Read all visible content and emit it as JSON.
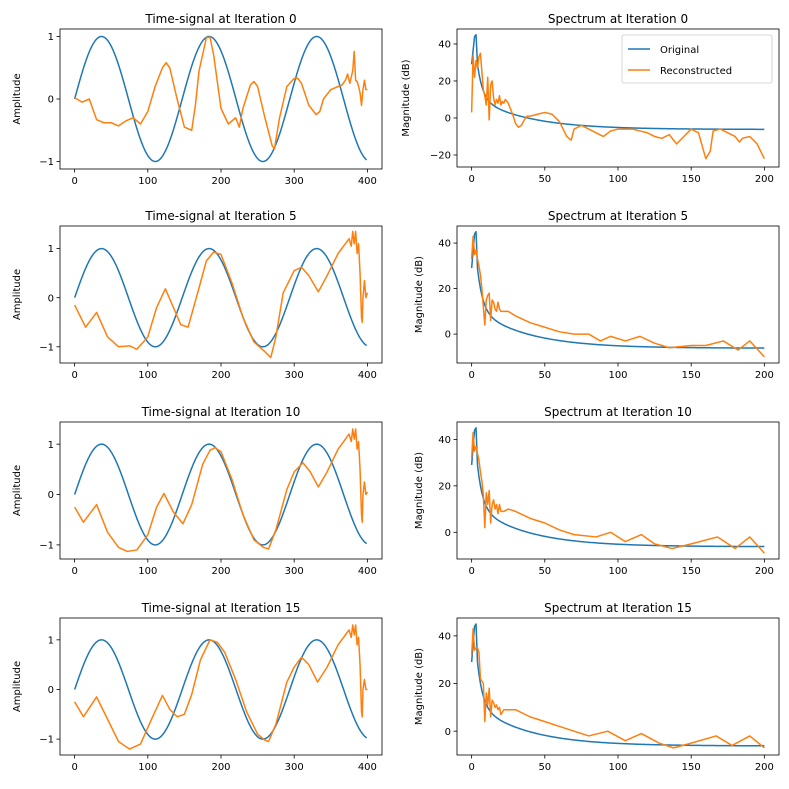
{
  "colors": {
    "original": "#1f77b4",
    "reconstructed": "#ff7f0e"
  },
  "chart_data": [
    {
      "type": "line",
      "panel": "time-0",
      "title": "Time-signal at Iteration 0",
      "xlabel": "",
      "ylabel": "Amplitude",
      "xlim": [
        -20,
        420
      ],
      "ylim": [
        -1.12,
        1.12
      ],
      "xticks": [
        0,
        100,
        200,
        300,
        400
      ],
      "xtick_labels": [
        "0",
        "100",
        "200",
        "300",
        "400"
      ],
      "yticks": [
        -1,
        0,
        1
      ],
      "ytick_labels": [
        "−1",
        "0",
        "1"
      ],
      "series": [
        {
          "name": "Original",
          "generator": "sine",
          "period": 147,
          "n": 400
        },
        {
          "name": "Reconstructed",
          "x": [
            0,
            10,
            20,
            30,
            40,
            50,
            60,
            70,
            80,
            90,
            100,
            110,
            120,
            125,
            130,
            140,
            150,
            160,
            165,
            170,
            180,
            185,
            190,
            200,
            210,
            220,
            225,
            230,
            240,
            245,
            250,
            260,
            270,
            273,
            280,
            290,
            300,
            305,
            310,
            320,
            330,
            335,
            340,
            350,
            360,
            365,
            370,
            373,
            376,
            380,
            382,
            384,
            386,
            388,
            390,
            392,
            394,
            396,
            398,
            400
          ],
          "y": [
            0.02,
            -0.05,
            0,
            -0.33,
            -0.38,
            -0.38,
            -0.43,
            -0.35,
            -0.3,
            -0.4,
            -0.2,
            0.2,
            0.5,
            0.58,
            0.5,
            0.0,
            -0.45,
            -0.5,
            -0.1,
            0.45,
            0.98,
            0.99,
            0.7,
            -0.15,
            -0.4,
            -0.3,
            -0.45,
            -0.15,
            0.22,
            0.28,
            0.2,
            -0.3,
            -0.75,
            -0.8,
            -0.3,
            0.2,
            0.33,
            0.33,
            0.25,
            -0.1,
            -0.25,
            -0.2,
            0.0,
            0.15,
            0.2,
            0.22,
            0.3,
            0.4,
            0.25,
            0.45,
            0.76,
            0.3,
            0.28,
            0.2,
            0.1,
            -0.1,
            0.15,
            0.3,
            0.15,
            0.15
          ]
        }
      ]
    },
    {
      "type": "line",
      "panel": "spectrum-0",
      "title": "Spectrum at Iteration 0",
      "xlabel": "",
      "ylabel": "Magnitude (dB)",
      "xlim": [
        -10,
        210
      ],
      "ylim": [
        -26.5,
        48.1
      ],
      "xticks": [
        0,
        50,
        100,
        150,
        200
      ],
      "xtick_labels": [
        "0",
        "50",
        "100",
        "150",
        "200"
      ],
      "yticks": [
        -20,
        0,
        20,
        40
      ],
      "ytick_labels": [
        "−20",
        "0",
        "20",
        "40"
      ],
      "legend": {
        "entries": [
          "Original",
          "Reconstructed"
        ],
        "location": "upper right"
      },
      "series": [
        {
          "name": "Original",
          "generator": "spectrum",
          "n": 200
        },
        {
          "name": "Reconstructed",
          "x": [
            0,
            1,
            2,
            3,
            4,
            5,
            6,
            7,
            8,
            9,
            10,
            11,
            12,
            13,
            14,
            15,
            16,
            17,
            18,
            19,
            20,
            21,
            22,
            23,
            24,
            25,
            26,
            28,
            30,
            32,
            34,
            36,
            38,
            40,
            45,
            50,
            55,
            60,
            65,
            68,
            70,
            75,
            80,
            85,
            90,
            95,
            100,
            105,
            110,
            115,
            120,
            125,
            130,
            135,
            140,
            145,
            150,
            155,
            160,
            163,
            165,
            170,
            175,
            180,
            183,
            185,
            190,
            195,
            200
          ],
          "y": [
            3,
            34,
            22,
            31,
            27,
            33,
            35,
            25,
            15,
            12,
            7,
            22,
            -1,
            18,
            20,
            11,
            7,
            10,
            8,
            12,
            7,
            9,
            8,
            10,
            9,
            8,
            6,
            2,
            -3,
            -5,
            -4,
            -1,
            1,
            1,
            2,
            3,
            2,
            -2,
            -10,
            -12,
            -6,
            -4,
            -6,
            -8,
            -10,
            -7,
            -6,
            -6,
            -6,
            -7,
            -8,
            -10,
            -11,
            -9,
            -14,
            -10,
            -6,
            -8,
            -22,
            -18,
            -7,
            -6,
            -8,
            -10,
            -13,
            -11,
            -10,
            -14,
            -22
          ]
        }
      ]
    },
    {
      "type": "line",
      "panel": "time-5",
      "title": "Time-signal at Iteration 5",
      "xlabel": "",
      "ylabel": "Amplitude",
      "xlim": [
        -20,
        420
      ],
      "ylim": [
        -1.33,
        1.46
      ],
      "xticks": [
        0,
        100,
        200,
        300,
        400
      ],
      "xtick_labels": [
        "0",
        "100",
        "200",
        "300",
        "400"
      ],
      "yticks": [
        -1,
        0,
        1
      ],
      "ytick_labels": [
        "−1",
        "0",
        "1"
      ],
      "series": [
        {
          "name": "Original",
          "generator": "sine",
          "period": 147,
          "n": 400
        },
        {
          "name": "Reconstructed",
          "x": [
            0,
            15,
            30,
            45,
            60,
            75,
            85,
            100,
            112,
            124,
            135,
            145,
            155,
            170,
            180,
            190,
            200,
            215,
            230,
            245,
            260,
            268,
            275,
            285,
            300,
            310,
            320,
            333,
            345,
            360,
            370,
            375,
            378,
            380,
            382,
            384,
            386,
            388,
            390,
            392,
            393,
            394,
            396,
            398,
            400
          ],
          "y": [
            -0.15,
            -0.6,
            -0.3,
            -0.8,
            -1.0,
            -0.98,
            -1.05,
            -0.8,
            -0.2,
            0.18,
            -0.2,
            -0.55,
            -0.6,
            0.2,
            0.75,
            0.93,
            0.88,
            0.3,
            -0.4,
            -0.9,
            -1.1,
            -1.22,
            -0.8,
            0.1,
            0.55,
            0.62,
            0.45,
            0.12,
            0.45,
            0.9,
            1.1,
            1.2,
            1.05,
            1.35,
            1.1,
            1.35,
            0.9,
            1.1,
            0.5,
            -0.4,
            -0.5,
            0.0,
            0.35,
            0.0,
            0.1
          ]
        }
      ]
    },
    {
      "type": "line",
      "panel": "spectrum-5",
      "title": "Spectrum at Iteration 5",
      "xlabel": "",
      "ylabel": "Magnitude (dB)",
      "xlim": [
        -10,
        210
      ],
      "ylim": [
        -12.7,
        47.5
      ],
      "xticks": [
        0,
        50,
        100,
        150,
        200
      ],
      "xtick_labels": [
        "0",
        "50",
        "100",
        "150",
        "200"
      ],
      "yticks": [
        0,
        20,
        40
      ],
      "ytick_labels": [
        "0",
        "20",
        "40"
      ],
      "series": [
        {
          "name": "Original",
          "generator": "spectrum",
          "n": 200
        },
        {
          "name": "Reconstructed",
          "x": [
            0,
            1,
            2,
            3,
            4,
            5,
            6,
            7,
            8,
            9,
            10,
            11,
            12,
            13,
            14,
            15,
            16,
            17,
            18,
            19,
            20,
            22,
            25,
            30,
            40,
            50,
            60,
            70,
            80,
            88,
            95,
            105,
            115,
            125,
            135,
            150,
            160,
            172,
            182,
            190,
            200
          ],
          "y": [
            33,
            43,
            35,
            37,
            33,
            30,
            26,
            20,
            12,
            4,
            15,
            17,
            18,
            6,
            15,
            14,
            11,
            10,
            14,
            11,
            10,
            10,
            10,
            8,
            5,
            3,
            1,
            0,
            0,
            -3,
            -1,
            -3,
            -1,
            -4,
            -6,
            -5,
            -5,
            -3,
            -7,
            -3,
            -10
          ]
        }
      ]
    },
    {
      "type": "line",
      "panel": "time-10",
      "title": "Time-signal at Iteration 10",
      "xlabel": "",
      "ylabel": "Amplitude",
      "xlim": [
        -20,
        420
      ],
      "ylim": [
        -1.28,
        1.44
      ],
      "xticks": [
        0,
        100,
        200,
        300,
        400
      ],
      "xtick_labels": [
        "0",
        "100",
        "200",
        "300",
        "400"
      ],
      "yticks": [
        -1,
        0,
        1
      ],
      "ytick_labels": [
        "−1",
        "0",
        "1"
      ],
      "series": [
        {
          "name": "Original",
          "generator": "sine",
          "period": 147,
          "n": 400
        },
        {
          "name": "Reconstructed",
          "x": [
            0,
            12,
            30,
            45,
            60,
            72,
            85,
            100,
            112,
            122,
            135,
            148,
            160,
            175,
            185,
            192,
            200,
            215,
            230,
            245,
            258,
            265,
            275,
            290,
            300,
            312,
            322,
            333,
            345,
            360,
            370,
            375,
            378,
            380,
            382,
            384,
            386,
            388,
            390,
            392,
            393,
            394,
            396,
            398,
            400
          ],
          "y": [
            -0.25,
            -0.55,
            -0.2,
            -0.75,
            -1.05,
            -1.13,
            -1.1,
            -0.8,
            -0.25,
            0.02,
            -0.35,
            -0.58,
            -0.2,
            0.6,
            0.88,
            0.93,
            0.85,
            0.3,
            -0.4,
            -0.9,
            -1.05,
            -1.08,
            -0.7,
            0.1,
            0.45,
            0.63,
            0.45,
            0.15,
            0.45,
            0.9,
            1.1,
            1.2,
            1.05,
            1.3,
            1.1,
            1.3,
            0.9,
            1.05,
            0.5,
            -0.4,
            -0.55,
            0.0,
            0.25,
            0.0,
            0.05
          ]
        }
      ]
    },
    {
      "type": "line",
      "panel": "spectrum-10",
      "title": "Spectrum at Iteration 10",
      "xlabel": "",
      "ylabel": "Magnitude (dB)",
      "xlim": [
        -10,
        210
      ],
      "ylim": [
        -11.5,
        47.5
      ],
      "xticks": [
        0,
        50,
        100,
        150,
        200
      ],
      "xtick_labels": [
        "0",
        "50",
        "100",
        "150",
        "200"
      ],
      "yticks": [
        0,
        20,
        40
      ],
      "ytick_labels": [
        "0",
        "20",
        "40"
      ],
      "series": [
        {
          "name": "Original",
          "generator": "spectrum",
          "n": 200
        },
        {
          "name": "Reconstructed",
          "x": [
            0,
            1,
            2,
            3,
            4,
            5,
            6,
            7,
            8,
            9,
            10,
            11,
            12,
            13,
            14,
            15,
            16,
            17,
            18,
            19,
            20,
            22,
            25,
            30,
            40,
            50,
            60,
            70,
            85,
            95,
            105,
            116,
            125,
            137,
            150,
            168,
            180,
            190,
            200
          ],
          "y": [
            32,
            43,
            35,
            37,
            34,
            31,
            26,
            22,
            16,
            2,
            17,
            12,
            18,
            4,
            12,
            14,
            10,
            12,
            8,
            12,
            9,
            9,
            10,
            9,
            6,
            4,
            1,
            -1,
            -2,
            0,
            -4,
            -1,
            -5,
            -7,
            -5,
            -2,
            -7,
            -2,
            -9
          ]
        }
      ]
    },
    {
      "type": "line",
      "panel": "time-15",
      "title": "Time-signal at Iteration 15",
      "xlabel": "",
      "ylabel": "Amplitude",
      "xlim": [
        -20,
        420
      ],
      "ylim": [
        -1.32,
        1.44
      ],
      "xticks": [
        0,
        100,
        200,
        300,
        400
      ],
      "xtick_labels": [
        "0",
        "100",
        "200",
        "300",
        "400"
      ],
      "yticks": [
        -1,
        0,
        1
      ],
      "ytick_labels": [
        "−1",
        "0",
        "1"
      ],
      "series": [
        {
          "name": "Original",
          "generator": "sine",
          "period": 147,
          "n": 400
        },
        {
          "name": "Reconstructed",
          "x": [
            0,
            12,
            30,
            45,
            60,
            75,
            90,
            105,
            120,
            130,
            140,
            150,
            160,
            172,
            185,
            195,
            205,
            220,
            235,
            250,
            260,
            265,
            275,
            290,
            300,
            310,
            320,
            332,
            345,
            360,
            370,
            375,
            378,
            380,
            382,
            384,
            386,
            388,
            390,
            392,
            393,
            394,
            396,
            398,
            400
          ],
          "y": [
            -0.25,
            -0.55,
            -0.15,
            -0.6,
            -1.05,
            -1.2,
            -1.1,
            -0.6,
            -0.12,
            -0.4,
            -0.55,
            -0.5,
            -0.1,
            0.6,
            1.0,
            0.95,
            0.75,
            0.2,
            -0.45,
            -0.9,
            -1.02,
            -1.05,
            -0.7,
            0.15,
            0.45,
            0.65,
            0.5,
            0.15,
            0.45,
            0.9,
            1.1,
            1.2,
            1.05,
            1.3,
            1.1,
            1.3,
            0.9,
            1.05,
            0.5,
            -0.45,
            -0.55,
            0.0,
            0.2,
            0.0,
            0.0
          ]
        }
      ]
    },
    {
      "type": "line",
      "panel": "spectrum-15",
      "title": "Spectrum at Iteration 15",
      "xlabel": "",
      "ylabel": "Magnitude (dB)",
      "xlim": [
        -10,
        210
      ],
      "ylim": [
        -10,
        47.5
      ],
      "xticks": [
        0,
        50,
        100,
        150,
        200
      ],
      "xtick_labels": [
        "0",
        "50",
        "100",
        "150",
        "200"
      ],
      "yticks": [
        0,
        20,
        40
      ],
      "ytick_labels": [
        "0",
        "20",
        "40"
      ],
      "series": [
        {
          "name": "Original",
          "generator": "spectrum",
          "n": 200
        },
        {
          "name": "Reconstructed",
          "x": [
            0,
            1,
            2,
            3,
            4,
            5,
            6,
            7,
            8,
            9,
            10,
            11,
            12,
            13,
            14,
            15,
            16,
            17,
            18,
            19,
            20,
            22,
            25,
            30,
            40,
            50,
            60,
            70,
            80,
            93,
            105,
            116,
            128,
            138,
            150,
            167,
            178,
            190,
            200
          ],
          "y": [
            32,
            43,
            34,
            35,
            35,
            33,
            22,
            21,
            20,
            4,
            16,
            11,
            18,
            6,
            13,
            12,
            10,
            11,
            9,
            10,
            7,
            9,
            9,
            9,
            6,
            4,
            2,
            0,
            -2,
            0,
            -4,
            -1,
            -5,
            -7,
            -5,
            -2,
            -6,
            -2,
            -7
          ]
        }
      ]
    }
  ]
}
